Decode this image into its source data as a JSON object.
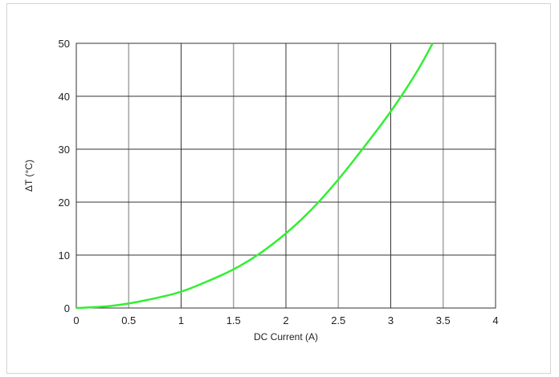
{
  "chart_data": {
    "type": "line",
    "title": "",
    "xlabel": "DC Current (A)",
    "ylabel": "ΔT (°C)",
    "xlim": [
      0,
      4
    ],
    "ylim": [
      0,
      50
    ],
    "x_ticks": [
      0,
      0.5,
      1,
      1.5,
      2,
      2.5,
      3,
      3.5,
      4
    ],
    "x_tick_labels": [
      "0",
      "0.5",
      "1",
      "1.5",
      "2",
      "2.5",
      "3",
      "3.5",
      "4"
    ],
    "y_ticks": [
      0,
      10,
      20,
      30,
      40,
      50
    ],
    "y_tick_labels": [
      "0",
      "10",
      "20",
      "30",
      "40",
      "50"
    ],
    "grid": true,
    "legend": "none",
    "series": [
      {
        "color": "#33ee33",
        "x": [
          0,
          0.25,
          0.5,
          0.75,
          1.0,
          1.25,
          1.5,
          1.75,
          2.0,
          2.25,
          2.5,
          2.75,
          3.0,
          3.25,
          3.4
        ],
        "y": [
          0,
          0.2,
          0.8,
          1.8,
          3.0,
          5.0,
          7.2,
          10.2,
          14.0,
          18.6,
          24.2,
          30.5,
          37.0,
          44.5,
          50.0
        ]
      }
    ]
  }
}
